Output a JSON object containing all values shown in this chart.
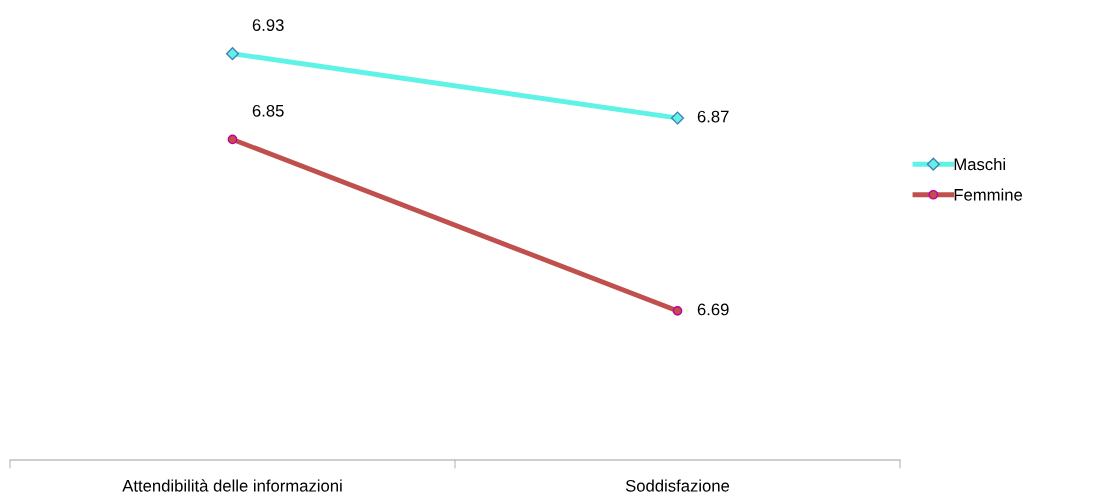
{
  "chart_data": {
    "type": "line",
    "categories": [
      "Attendibilità delle informazioni",
      "Soddisfazione"
    ],
    "series": [
      {
        "name": "Maschi",
        "color": "#5ff3e6",
        "marker": "diamond",
        "values": [
          6.93,
          6.87
        ]
      },
      {
        "name": "Femmine",
        "color": "#c0504d",
        "marker": "circle",
        "values": [
          6.85,
          6.69
        ]
      }
    ],
    "tick_labels": "x",
    "data_labels": true,
    "legend": "right",
    "grid": false,
    "line_style": "solid"
  }
}
